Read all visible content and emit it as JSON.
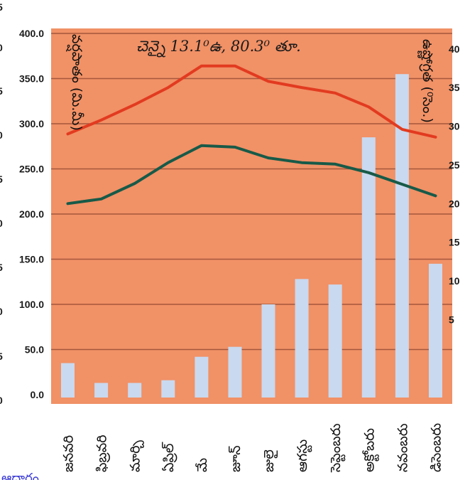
{
  "chart_data": {
    "type": "bar+line",
    "title": "చెన్నై 13.1⁰ఉ, 80.3⁰ తూ.",
    "ylabel_left": "వర్షపాతం (మి.మీ)",
    "ylabel_right": "ఉష్ణోగ్రత (⁰సెం.)",
    "categories": [
      "జనవరి",
      "ఫిబ్రవరి",
      "మార్చి",
      "ఏప్రిల్",
      "మే",
      "జూన్",
      "జులై",
      "ఆగస్టు",
      "సెప్టెంబరు",
      "అక్టోబరు",
      "నవంబరు",
      "డిసెంబరు"
    ],
    "left_axis": {
      "ylim": [
        0,
        400
      ],
      "ticks": [
        "0.0",
        "50.0",
        "100.0",
        "150.0",
        "200.0",
        "250.0",
        "300.0",
        "350.0",
        "400.0"
      ]
    },
    "right_axis": {
      "ylim": [
        -4.7,
        42
      ],
      "ticks": [
        "5",
        "10",
        "15",
        "20",
        "25",
        "30",
        "35",
        "40"
      ]
    },
    "bars": {
      "name": "rainfall",
      "color": "#c9d9ef",
      "values": [
        35,
        13,
        13,
        16,
        42,
        53,
        100,
        128,
        122,
        285,
        355,
        145
      ]
    },
    "lines": [
      {
        "name": "max",
        "color": "#e23b20",
        "values": [
          29.0,
          30.8,
          32.8,
          35.0,
          37.8,
          37.8,
          35.8,
          35.0,
          34.3,
          32.5,
          29.6,
          28.6
        ]
      },
      {
        "name": "min",
        "color": "#185a48",
        "values": [
          20.0,
          20.6,
          22.6,
          25.3,
          27.5,
          27.3,
          25.9,
          25.3,
          25.1,
          24.0,
          22.5,
          21.0
        ]
      }
    ],
    "grid": true,
    "colors": {
      "plot_bg": "#f19166",
      "grid": "#a6573c"
    },
    "cutoff_left_labels": [
      "5",
      "0",
      "5",
      "0",
      "5",
      "0",
      "5",
      "0",
      "5",
      "0"
    ],
    "bottom_text": "ఆధారం"
  }
}
